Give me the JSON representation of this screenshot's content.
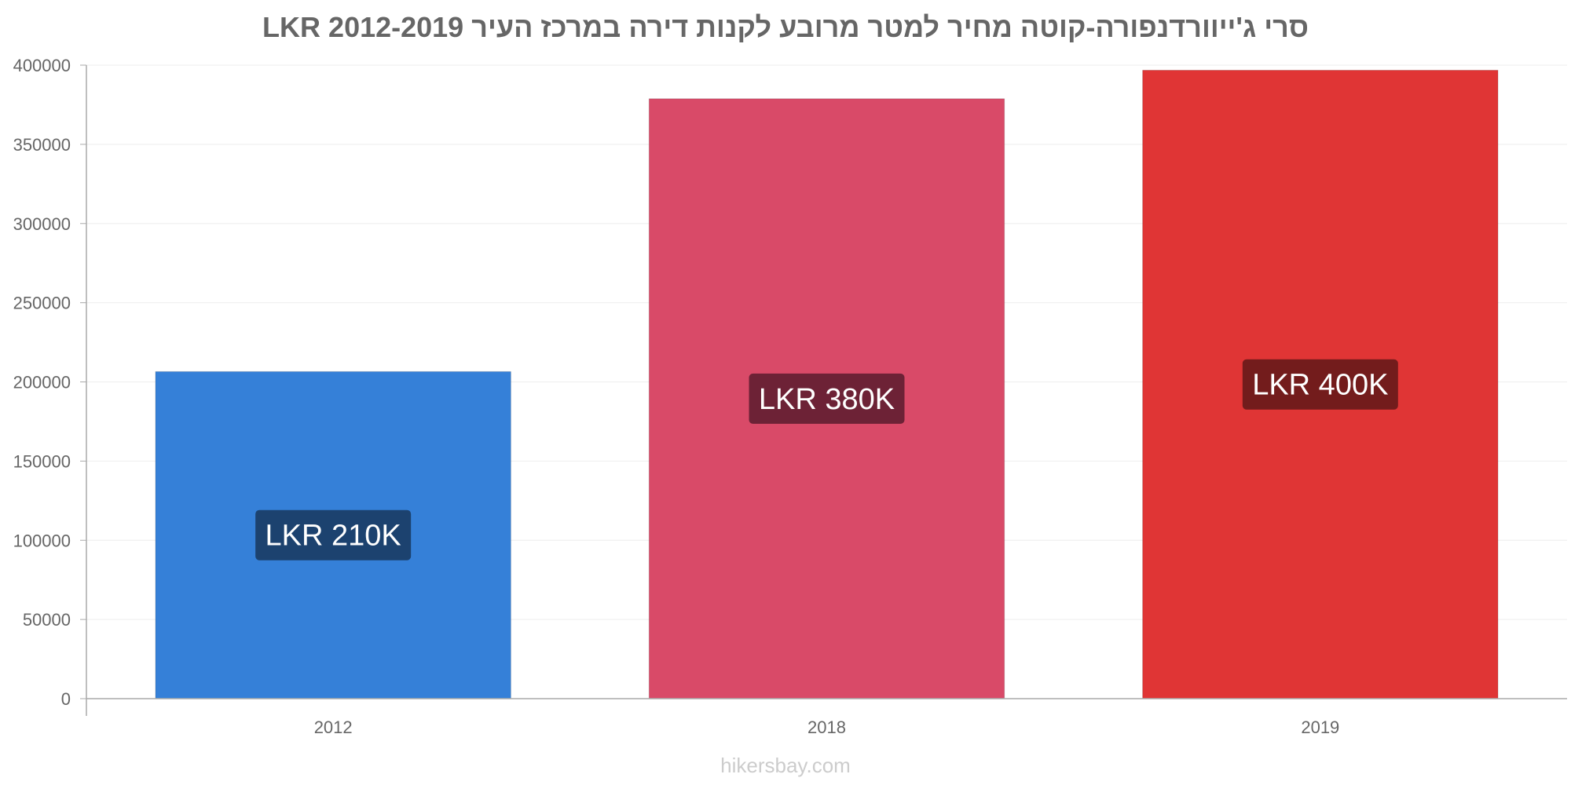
{
  "title": "סרי ג'ייוורדנפורה-קוטה מחיר למטר מרובע לקנות דירה במרכז העיר 2012-2019 LKR",
  "watermark": "hikersbay.com",
  "chart_data": {
    "type": "bar",
    "title": "סרי ג'ייוורדנפורה-קוטה מחיר למטר מרובע לקנות דירה במרכז העיר 2012-2019 LKR",
    "categories": [
      "2012",
      "2018",
      "2019"
    ],
    "values": [
      206500,
      378800,
      396800
    ],
    "data_labels": [
      "LKR 210K",
      "LKR 380K",
      "LKR 400K"
    ],
    "bar_colors": [
      "#3580d8",
      "#d94a68",
      "#e03535"
    ],
    "label_bg_colors": [
      "#1c426f",
      "#6d2236",
      "#731c1c"
    ],
    "ylim": [
      0,
      400000
    ],
    "yticks": [
      "0",
      "50000",
      "100000",
      "150000",
      "200000",
      "250000",
      "300000",
      "350000",
      "400000"
    ],
    "xlabel": "",
    "ylabel": "",
    "grid": true,
    "legend": "none"
  }
}
